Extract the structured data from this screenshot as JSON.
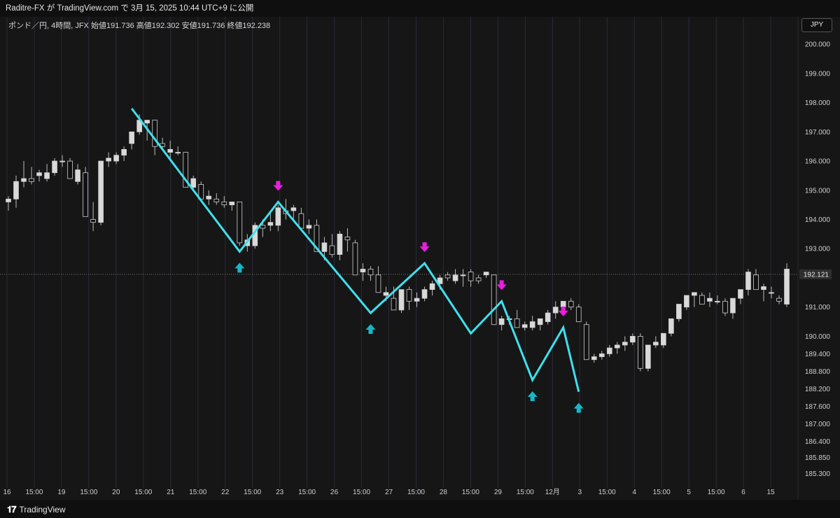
{
  "header": {
    "publish_text": "Raditre-FX が TradingView.com で 3月 15, 2025 10:44 UTC+9 に公開"
  },
  "symbol": {
    "info": "ポンド／円, 4時間, JFX  始値191.736  高値192.302  安値191.736  終値192.238",
    "currency": "JPY"
  },
  "footer": {
    "logo_mark": "𝟏𝟕",
    "logo_text": "TradingView"
  },
  "colors": {
    "bull": "#d9d9d9",
    "bear": "#111111",
    "zigzag": "#3fe0ee",
    "up_arrow": "#19b6c9",
    "down_arrow": "#e91ee0",
    "vline": "#2a2a3a"
  },
  "chart_data": {
    "type": "candlestick",
    "ylim": [
      185.0,
      200.7
    ],
    "price_ticks": [
      "200.000",
      "199.000",
      "198.000",
      "197.000",
      "196.000",
      "195.000",
      "194.000",
      "193.000",
      "191.000",
      "190.000",
      "189.400",
      "188.800",
      "188.200",
      "187.600",
      "187.000",
      "186.400",
      "185.850",
      "185.300"
    ],
    "last_price": "192.121",
    "time_labels": [
      "16",
      "15:00",
      "19",
      "15:00",
      "20",
      "15:00",
      "21",
      "15:00",
      "22",
      "15:00",
      "23",
      "15:00",
      "26",
      "15:00",
      "27",
      "15:00",
      "28",
      "15:00",
      "29",
      "15:00",
      "12月",
      "3",
      "15:00",
      "4",
      "15:00",
      "5",
      "15:00",
      "6",
      "15"
    ],
    "candles": [
      [
        194.6,
        194.8,
        194.3,
        194.7
      ],
      [
        194.7,
        195.5,
        194.4,
        195.3
      ],
      [
        195.3,
        196.0,
        195.1,
        195.4
      ],
      [
        195.4,
        195.8,
        195.2,
        195.3
      ],
      [
        195.5,
        195.7,
        195.3,
        195.6
      ],
      [
        195.4,
        195.9,
        195.3,
        195.6
      ],
      [
        195.6,
        196.1,
        195.5,
        196.0
      ],
      [
        196.0,
        196.2,
        195.8,
        196.0
      ],
      [
        196.0,
        196.1,
        195.4,
        195.4
      ],
      [
        195.3,
        195.9,
        195.2,
        195.7
      ],
      [
        195.6,
        195.8,
        194.1,
        194.1
      ],
      [
        194.0,
        194.6,
        193.6,
        193.9
      ],
      [
        193.9,
        196.0,
        193.8,
        196.0
      ],
      [
        196.0,
        196.3,
        195.8,
        196.1
      ],
      [
        196.0,
        196.3,
        195.9,
        196.2
      ],
      [
        196.2,
        196.5,
        196.0,
        196.4
      ],
      [
        196.6,
        197.0,
        196.4,
        197.0
      ],
      [
        197.0,
        197.6,
        196.9,
        197.4
      ],
      [
        197.3,
        197.4,
        196.7,
        197.4
      ],
      [
        197.4,
        197.4,
        196.2,
        196.5
      ],
      [
        196.6,
        196.8,
        196.4,
        196.5
      ],
      [
        196.3,
        196.7,
        196.1,
        196.4
      ],
      [
        196.3,
        196.5,
        196.2,
        196.3
      ],
      [
        196.3,
        196.3,
        195.1,
        195.1
      ],
      [
        195.1,
        195.5,
        195.0,
        195.4
      ],
      [
        195.2,
        195.3,
        194.6,
        194.7
      ],
      [
        194.7,
        195.0,
        194.5,
        194.8
      ],
      [
        194.7,
        194.9,
        194.5,
        194.6
      ],
      [
        194.6,
        194.8,
        194.4,
        194.5
      ],
      [
        194.5,
        194.6,
        194.3,
        194.6
      ],
      [
        194.6,
        194.6,
        193.1,
        193.2
      ],
      [
        193.1,
        193.5,
        192.9,
        193.3
      ],
      [
        193.1,
        193.9,
        193.0,
        193.8
      ],
      [
        193.8,
        194.0,
        193.4,
        193.7
      ],
      [
        193.8,
        194.3,
        193.6,
        193.9
      ],
      [
        193.8,
        194.5,
        193.6,
        194.4
      ],
      [
        194.3,
        194.7,
        194.0,
        194.2
      ],
      [
        194.3,
        194.5,
        194.0,
        194.4
      ],
      [
        194.2,
        194.4,
        193.7,
        193.7
      ],
      [
        193.7,
        194.0,
        193.5,
        193.8
      ],
      [
        193.8,
        194.0,
        192.9,
        192.9
      ],
      [
        192.9,
        193.4,
        192.6,
        193.2
      ],
      [
        193.1,
        193.5,
        192.7,
        192.8
      ],
      [
        192.8,
        193.6,
        192.6,
        193.5
      ],
      [
        193.4,
        193.7,
        192.9,
        193.3
      ],
      [
        193.2,
        193.3,
        192.2,
        192.1
      ],
      [
        192.2,
        192.5,
        191.9,
        192.3
      ],
      [
        192.3,
        192.4,
        191.9,
        192.1
      ],
      [
        192.1,
        192.4,
        191.5,
        191.5
      ],
      [
        191.4,
        191.7,
        191.2,
        191.5
      ],
      [
        191.3,
        191.7,
        190.9,
        190.9
      ],
      [
        190.9,
        191.6,
        190.8,
        191.6
      ],
      [
        191.6,
        191.7,
        190.9,
        191.2
      ],
      [
        191.2,
        191.5,
        191.0,
        191.3
      ],
      [
        191.3,
        191.7,
        191.2,
        191.6
      ],
      [
        191.6,
        191.9,
        191.4,
        191.8
      ],
      [
        191.8,
        192.1,
        191.6,
        192.0
      ],
      [
        192.1,
        192.2,
        191.9,
        192.0
      ],
      [
        191.9,
        192.3,
        191.8,
        192.1
      ],
      [
        192.1,
        192.3,
        191.7,
        192.1
      ],
      [
        192.2,
        192.3,
        191.7,
        191.9
      ],
      [
        192.0,
        192.1,
        191.8,
        191.9
      ],
      [
        192.1,
        192.2,
        192.0,
        192.2
      ],
      [
        192.1,
        192.1,
        190.4,
        190.4
      ],
      [
        190.4,
        190.7,
        190.2,
        190.6
      ],
      [
        190.6,
        190.7,
        190.4,
        190.6
      ],
      [
        190.6,
        190.9,
        190.3,
        190.3
      ],
      [
        190.3,
        190.5,
        190.2,
        190.4
      ],
      [
        190.3,
        190.7,
        190.2,
        190.5
      ],
      [
        190.4,
        190.6,
        190.2,
        190.6
      ],
      [
        190.5,
        190.9,
        190.4,
        190.8
      ],
      [
        190.8,
        191.2,
        190.6,
        191.0
      ],
      [
        191.0,
        191.2,
        190.9,
        191.2
      ],
      [
        191.2,
        191.3,
        190.9,
        191.0
      ],
      [
        191.0,
        191.1,
        190.5,
        190.5
      ],
      [
        190.4,
        190.5,
        189.2,
        189.2
      ],
      [
        189.2,
        189.4,
        189.1,
        189.3
      ],
      [
        189.3,
        189.5,
        189.2,
        189.4
      ],
      [
        189.4,
        189.7,
        189.3,
        189.6
      ],
      [
        189.6,
        189.8,
        189.4,
        189.7
      ],
      [
        189.7,
        190.0,
        189.5,
        189.8
      ],
      [
        189.8,
        190.1,
        189.7,
        190.0
      ],
      [
        190.0,
        190.1,
        188.8,
        188.9
      ],
      [
        188.9,
        189.7,
        188.8,
        189.7
      ],
      [
        189.7,
        190.0,
        189.6,
        189.8
      ],
      [
        189.7,
        190.1,
        189.6,
        190.1
      ],
      [
        190.1,
        190.6,
        190.0,
        190.6
      ],
      [
        190.6,
        191.1,
        190.5,
        191.1
      ],
      [
        191.0,
        191.3,
        190.9,
        191.4
      ],
      [
        191.4,
        191.5,
        191.0,
        191.5
      ],
      [
        191.4,
        191.5,
        191.1,
        191.1
      ],
      [
        191.2,
        191.5,
        191.0,
        191.3
      ],
      [
        191.2,
        191.4,
        191.1,
        191.2
      ],
      [
        191.2,
        191.3,
        190.7,
        190.8
      ],
      [
        190.8,
        191.3,
        190.6,
        191.3
      ],
      [
        191.3,
        191.6,
        191.1,
        191.6
      ],
      [
        191.6,
        192.3,
        191.4,
        192.2
      ],
      [
        192.1,
        192.3,
        191.6,
        191.6
      ],
      [
        191.6,
        191.8,
        191.2,
        191.7
      ],
      [
        191.5,
        191.7,
        191.3,
        191.5
      ],
      [
        191.3,
        191.4,
        191.1,
        191.2
      ],
      [
        191.1,
        192.5,
        191.0,
        192.3
      ]
    ],
    "zigzag": [
      [
        197.8,
        16
      ],
      [
        192.9,
        30
      ],
      [
        194.6,
        35
      ],
      [
        190.8,
        47
      ],
      [
        192.5,
        54
      ],
      [
        190.1,
        60
      ],
      [
        191.2,
        64
      ],
      [
        188.5,
        68
      ],
      [
        190.3,
        72
      ],
      [
        188.1,
        74
      ]
    ],
    "signals": [
      {
        "type": "up",
        "x": 30,
        "price": 192.9
      },
      {
        "type": "down",
        "x": 35,
        "price": 194.6
      },
      {
        "type": "up",
        "x": 47,
        "price": 190.8
      },
      {
        "type": "down",
        "x": 54,
        "price": 192.5
      },
      {
        "type": "down",
        "x": 64,
        "price": 191.2
      },
      {
        "type": "up",
        "x": 68,
        "price": 188.5
      },
      {
        "type": "down",
        "x": 72,
        "price": 190.3
      },
      {
        "type": "up",
        "x": 74,
        "price": 188.1
      }
    ]
  }
}
